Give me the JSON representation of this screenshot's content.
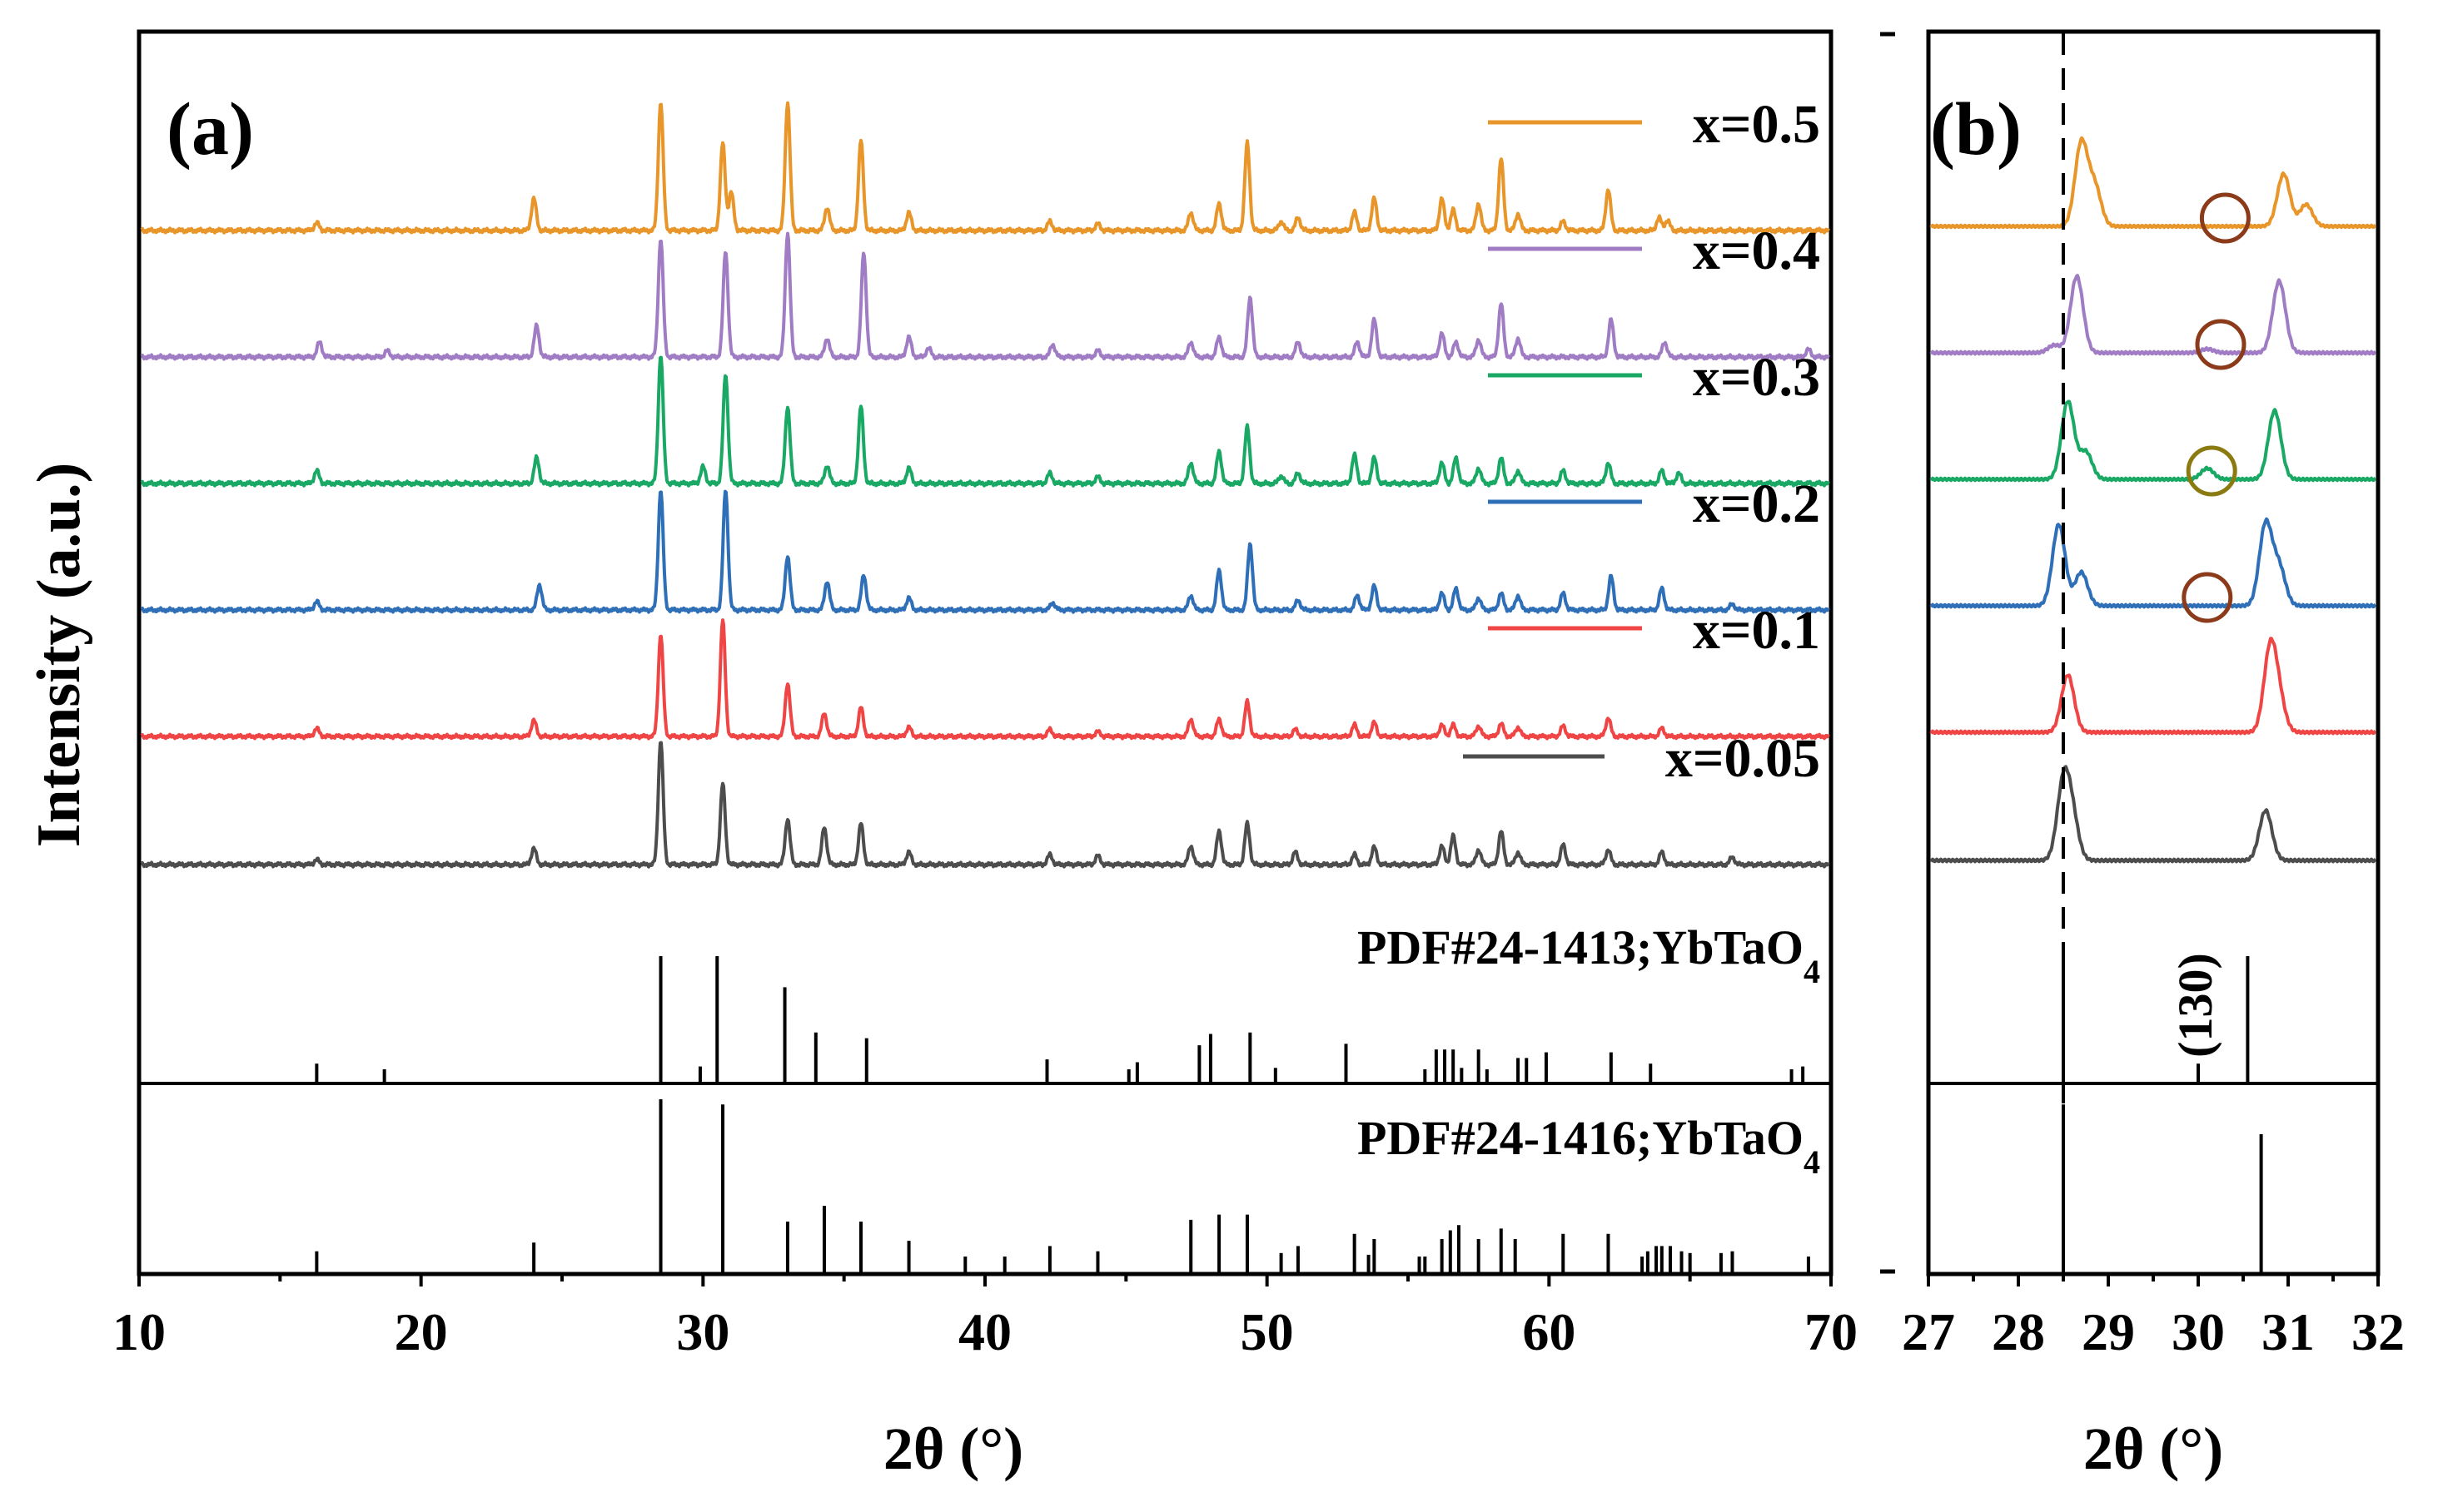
{
  "chart_data": [
    {
      "type": "line",
      "panel": "(a)",
      "xlabel": "2θ (°)",
      "ylabel": "Intensity (a.u.)",
      "xlim": [
        10,
        70
      ],
      "xticks": [
        "10",
        "20",
        "30",
        "40",
        "50",
        "60",
        "70"
      ],
      "series": [
        {
          "name": "x=0.5",
          "color": "#e8952a",
          "peaks": [
            [
              16.3,
              0.06
            ],
            [
              24.0,
              0.25
            ],
            [
              28.5,
              1.0
            ],
            [
              30.7,
              0.68
            ],
            [
              31.0,
              0.3
            ],
            [
              33.0,
              1.0
            ],
            [
              34.4,
              0.18
            ],
            [
              35.6,
              0.7
            ],
            [
              37.3,
              0.14
            ],
            [
              42.3,
              0.07
            ],
            [
              44.0,
              0.05
            ],
            [
              47.3,
              0.14
            ],
            [
              48.3,
              0.21
            ],
            [
              49.3,
              0.68
            ],
            [
              50.5,
              0.07
            ],
            [
              51.1,
              0.1
            ],
            [
              53.1,
              0.14
            ],
            [
              53.8,
              0.25
            ],
            [
              56.2,
              0.25
            ],
            [
              56.6,
              0.16
            ],
            [
              57.5,
              0.21
            ],
            [
              58.3,
              0.56
            ],
            [
              58.9,
              0.13
            ],
            [
              60.5,
              0.07
            ],
            [
              62.1,
              0.32
            ],
            [
              63.9,
              0.1
            ],
            [
              64.2,
              0.08
            ]
          ]
        },
        {
          "name": "x=0.4",
          "color": "#a07cc5",
          "peaks": [
            [
              16.4,
              0.12
            ],
            [
              18.8,
              0.05
            ],
            [
              24.1,
              0.25
            ],
            [
              28.5,
              0.95
            ],
            [
              30.8,
              0.85
            ],
            [
              33.0,
              1.0
            ],
            [
              34.4,
              0.15
            ],
            [
              35.7,
              0.84
            ],
            [
              37.3,
              0.16
            ],
            [
              38.0,
              0.07
            ],
            [
              42.4,
              0.1
            ],
            [
              44.0,
              0.05
            ],
            [
              47.3,
              0.12
            ],
            [
              48.3,
              0.16
            ],
            [
              49.4,
              0.48
            ],
            [
              51.1,
              0.12
            ],
            [
              53.2,
              0.12
            ],
            [
              53.8,
              0.3
            ],
            [
              56.2,
              0.19
            ],
            [
              56.7,
              0.12
            ],
            [
              57.5,
              0.14
            ],
            [
              58.3,
              0.43
            ],
            [
              58.9,
              0.15
            ],
            [
              62.2,
              0.3
            ],
            [
              64.1,
              0.12
            ],
            [
              69.2,
              0.06
            ]
          ]
        },
        {
          "name": "x=0.3",
          "color": "#1aa865",
          "peaks": [
            [
              16.3,
              0.1
            ],
            [
              24.1,
              0.2
            ],
            [
              28.5,
              1.0
            ],
            [
              30.0,
              0.13
            ],
            [
              30.8,
              0.85
            ],
            [
              33.0,
              0.6
            ],
            [
              34.4,
              0.14
            ],
            [
              35.6,
              0.6
            ],
            [
              37.3,
              0.12
            ],
            [
              42.3,
              0.08
            ],
            [
              44.0,
              0.05
            ],
            [
              47.3,
              0.16
            ],
            [
              48.3,
              0.25
            ],
            [
              49.3,
              0.44
            ],
            [
              50.5,
              0.06
            ],
            [
              51.1,
              0.08
            ],
            [
              53.1,
              0.22
            ],
            [
              53.8,
              0.2
            ],
            [
              56.2,
              0.16
            ],
            [
              56.7,
              0.2
            ],
            [
              57.5,
              0.12
            ],
            [
              58.3,
              0.2
            ],
            [
              58.9,
              0.1
            ],
            [
              60.5,
              0.1
            ],
            [
              62.1,
              0.16
            ],
            [
              64.0,
              0.1
            ],
            [
              64.6,
              0.08
            ]
          ]
        },
        {
          "name": "x=0.2",
          "color": "#2e6fb8",
          "peaks": [
            [
              16.3,
              0.07
            ],
            [
              24.2,
              0.21
            ],
            [
              28.5,
              1.0
            ],
            [
              30.8,
              1.0
            ],
            [
              33.0,
              0.45
            ],
            [
              34.4,
              0.24
            ],
            [
              35.7,
              0.29
            ],
            [
              37.3,
              0.1
            ],
            [
              42.4,
              0.06
            ],
            [
              47.3,
              0.12
            ],
            [
              48.3,
              0.33
            ],
            [
              49.4,
              0.55
            ],
            [
              51.1,
              0.08
            ],
            [
              53.2,
              0.12
            ],
            [
              53.8,
              0.2
            ],
            [
              56.2,
              0.14
            ],
            [
              56.7,
              0.18
            ],
            [
              57.5,
              0.1
            ],
            [
              58.3,
              0.14
            ],
            [
              58.9,
              0.12
            ],
            [
              60.5,
              0.14
            ],
            [
              62.2,
              0.28
            ],
            [
              64.0,
              0.18
            ],
            [
              66.5,
              0.05
            ]
          ]
        },
        {
          "name": "x=0.1",
          "color": "#f04545",
          "peaks": [
            [
              16.3,
              0.07
            ],
            [
              24.0,
              0.14
            ],
            [
              28.5,
              0.88
            ],
            [
              30.7,
              1.0
            ],
            [
              33.0,
              0.46
            ],
            [
              34.3,
              0.2
            ],
            [
              35.6,
              0.25
            ],
            [
              37.3,
              0.08
            ],
            [
              42.3,
              0.06
            ],
            [
              44.0,
              0.04
            ],
            [
              47.3,
              0.15
            ],
            [
              48.3,
              0.15
            ],
            [
              49.3,
              0.3
            ],
            [
              51.0,
              0.06
            ],
            [
              53.1,
              0.1
            ],
            [
              53.8,
              0.12
            ],
            [
              56.2,
              0.1
            ],
            [
              56.6,
              0.1
            ],
            [
              57.5,
              0.09
            ],
            [
              58.3,
              0.11
            ],
            [
              58.9,
              0.08
            ],
            [
              60.5,
              0.09
            ],
            [
              62.1,
              0.16
            ],
            [
              64.0,
              0.07
            ]
          ]
        },
        {
          "name": "x=0.05",
          "color": "#4d4d4d",
          "peaks": [
            [
              16.3,
              0.04
            ],
            [
              24.0,
              0.13
            ],
            [
              28.5,
              1.0
            ],
            [
              30.7,
              0.65
            ],
            [
              33.0,
              0.37
            ],
            [
              34.3,
              0.3
            ],
            [
              35.6,
              0.33
            ],
            [
              37.3,
              0.1
            ],
            [
              42.3,
              0.08
            ],
            [
              44.0,
              0.07
            ],
            [
              47.3,
              0.15
            ],
            [
              48.3,
              0.27
            ],
            [
              49.3,
              0.33
            ],
            [
              51.0,
              0.1
            ],
            [
              53.1,
              0.08
            ],
            [
              53.8,
              0.14
            ],
            [
              56.2,
              0.15
            ],
            [
              56.6,
              0.23
            ],
            [
              57.5,
              0.12
            ],
            [
              58.3,
              0.27
            ],
            [
              58.9,
              0.1
            ],
            [
              60.5,
              0.16
            ],
            [
              62.1,
              0.12
            ],
            [
              64.0,
              0.1
            ],
            [
              66.5,
              0.06
            ]
          ]
        }
      ],
      "references": [
        {
          "label": "PDF#24-1413;YbTaO",
          "subscript": "4",
          "lines": [
            [
              16.3,
              0.14
            ],
            [
              18.7,
              0.1
            ],
            [
              28.5,
              0.9
            ],
            [
              29.9,
              0.12
            ],
            [
              30.5,
              0.9
            ],
            [
              32.9,
              0.68
            ],
            [
              34.0,
              0.36
            ],
            [
              35.8,
              0.32
            ],
            [
              42.2,
              0.17
            ],
            [
              45.1,
              0.1
            ],
            [
              45.4,
              0.15
            ],
            [
              47.6,
              0.27
            ],
            [
              48.0,
              0.35
            ],
            [
              49.4,
              0.36
            ],
            [
              50.3,
              0.11
            ],
            [
              52.8,
              0.28
            ],
            [
              55.6,
              0.1
            ],
            [
              56.0,
              0.24
            ],
            [
              56.3,
              0.24
            ],
            [
              56.6,
              0.24
            ],
            [
              56.9,
              0.11
            ],
            [
              57.5,
              0.24
            ],
            [
              57.8,
              0.1
            ],
            [
              58.9,
              0.18
            ],
            [
              59.2,
              0.18
            ],
            [
              59.9,
              0.22
            ],
            [
              62.2,
              0.22
            ],
            [
              63.6,
              0.14
            ],
            [
              68.6,
              0.1
            ],
            [
              69.0,
              0.12
            ]
          ]
        },
        {
          "label": "PDF#24-1416;YbTaO",
          "subscript": "4",
          "lines": [
            [
              16.3,
              0.13
            ],
            [
              24.0,
              0.18
            ],
            [
              28.5,
              1.0
            ],
            [
              30.7,
              0.97
            ],
            [
              33.0,
              0.3
            ],
            [
              34.3,
              0.39
            ],
            [
              35.6,
              0.3
            ],
            [
              37.3,
              0.19
            ],
            [
              39.3,
              0.1
            ],
            [
              40.7,
              0.1
            ],
            [
              42.3,
              0.16
            ],
            [
              44.0,
              0.13
            ],
            [
              47.3,
              0.31
            ],
            [
              48.3,
              0.34
            ],
            [
              49.3,
              0.34
            ],
            [
              50.5,
              0.12
            ],
            [
              51.1,
              0.16
            ],
            [
              53.1,
              0.23
            ],
            [
              53.6,
              0.11
            ],
            [
              53.8,
              0.2
            ],
            [
              55.4,
              0.1
            ],
            [
              55.6,
              0.1
            ],
            [
              56.2,
              0.2
            ],
            [
              56.5,
              0.25
            ],
            [
              56.8,
              0.28
            ],
            [
              57.5,
              0.2
            ],
            [
              58.3,
              0.26
            ],
            [
              58.8,
              0.2
            ],
            [
              60.5,
              0.23
            ],
            [
              62.1,
              0.23
            ],
            [
              63.3,
              0.1
            ],
            [
              63.5,
              0.13
            ],
            [
              63.8,
              0.16
            ],
            [
              64.0,
              0.16
            ],
            [
              64.3,
              0.16
            ],
            [
              64.7,
              0.13
            ],
            [
              65.0,
              0.12
            ],
            [
              66.1,
              0.12
            ],
            [
              66.5,
              0.13
            ],
            [
              69.2,
              0.1
            ]
          ]
        }
      ]
    },
    {
      "type": "line",
      "panel": "(b)",
      "xlabel": "2θ (°)",
      "xlim": [
        27,
        32
      ],
      "xticks": [
        "27",
        "28",
        "29",
        "30",
        "31",
        "32"
      ],
      "dashed_line_x": 28.5,
      "annotation": "(130)",
      "series": [
        {
          "name": "x=0.5",
          "peaks": [
            [
              28.7,
              0.95
            ],
            [
              28.85,
              0.45
            ],
            [
              30.95,
              0.6
            ],
            [
              31.2,
              0.25
            ]
          ],
          "circle_x": 30.3,
          "circle_color": "#8b3a1a"
        },
        {
          "name": "x=0.4",
          "peaks": [
            [
              28.4,
              0.08
            ],
            [
              28.65,
              0.8
            ],
            [
              30.1,
              0.04
            ],
            [
              30.9,
              0.75
            ]
          ],
          "circle_x": 30.25,
          "circle_color": "#8b3a1a"
        },
        {
          "name": "x=0.3",
          "peaks": [
            [
              28.55,
              0.85
            ],
            [
              28.75,
              0.3
            ],
            [
              30.1,
              0.12
            ],
            [
              30.85,
              0.75
            ]
          ],
          "circle_x": 30.15,
          "circle_color": "#8a7a10"
        },
        {
          "name": "x=0.2",
          "peaks": [
            [
              28.45,
              0.85
            ],
            [
              28.7,
              0.35
            ],
            [
              30.75,
              0.85
            ],
            [
              30.9,
              0.4
            ]
          ],
          "circle_x": 30.1,
          "circle_color": "#8b3a1a"
        },
        {
          "name": "x=0.1",
          "peaks": [
            [
              28.55,
              0.6
            ],
            [
              30.8,
              0.85
            ],
            [
              30.9,
              0.3
            ]
          ]
        },
        {
          "name": "x=0.05",
          "peaks": [
            [
              28.5,
              0.75
            ],
            [
              28.6,
              0.4
            ],
            [
              30.75,
              0.5
            ]
          ]
        }
      ],
      "references": [
        {
          "lines": [
            [
              28.5,
              0.9
            ],
            [
              30.0,
              0.14
            ],
            [
              30.55,
              0.9
            ]
          ]
        },
        {
          "lines": [
            [
              28.5,
              0.97
            ],
            [
              30.7,
              0.8
            ]
          ]
        }
      ]
    }
  ]
}
